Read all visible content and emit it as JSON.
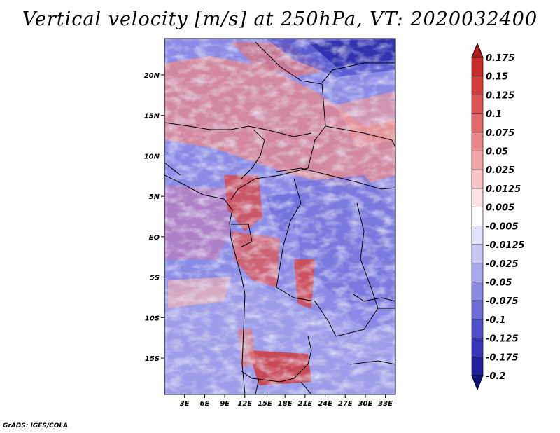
{
  "title": "Vertical velocity [m/s] at 250hPa, VT: 2020032400",
  "credit": "GrADS: IGES/COLA",
  "map": {
    "lon_range": [
      0,
      34.5
    ],
    "lat_range": [
      -19.5,
      24.5
    ],
    "x_ticks": [
      {
        "lon": 3,
        "label": "3E"
      },
      {
        "lon": 6,
        "label": "6E"
      },
      {
        "lon": 9,
        "label": "9E"
      },
      {
        "lon": 12,
        "label": "12E"
      },
      {
        "lon": 15,
        "label": "15E"
      },
      {
        "lon": 18,
        "label": "18E"
      },
      {
        "lon": 21,
        "label": "21E"
      },
      {
        "lon": 24,
        "label": "24E"
      },
      {
        "lon": 27,
        "label": "27E"
      },
      {
        "lon": 30,
        "label": "30E"
      },
      {
        "lon": 33,
        "label": "33E"
      }
    ],
    "y_ticks": [
      {
        "lat": 20,
        "label": "20N"
      },
      {
        "lat": 15,
        "label": "15N"
      },
      {
        "lat": 10,
        "label": "10N"
      },
      {
        "lat": 5,
        "label": "5N"
      },
      {
        "lat": 0,
        "label": "EQ"
      },
      {
        "lat": -5,
        "label": "5S"
      },
      {
        "lat": -10,
        "label": "10S"
      },
      {
        "lat": -15,
        "label": "15S"
      }
    ]
  },
  "colorbar": {
    "labels": [
      "0.175",
      "0.15",
      "0.125",
      "0.1",
      "0.075",
      "0.05",
      "0.025",
      "0.0125",
      "0.005",
      "-0.005",
      "-0.0125",
      "-0.025",
      "-0.05",
      "-0.075",
      "-0.1",
      "-0.125",
      "-0.175",
      "-0.2"
    ],
    "colors": [
      "#b0171f",
      "#c62a2a",
      "#d33c3c",
      "#dd5252",
      "#e46a6a",
      "#eb8686",
      "#f1a4a4",
      "#f6c4c4",
      "#fbe3e3",
      "#ffffff",
      "#e2e2fb",
      "#c6c6f4",
      "#a8a8ec",
      "#8a8ae2",
      "#6c6cd8",
      "#4f4fcb",
      "#3535b8",
      "#1f1f9e",
      "#12127e"
    ]
  }
}
